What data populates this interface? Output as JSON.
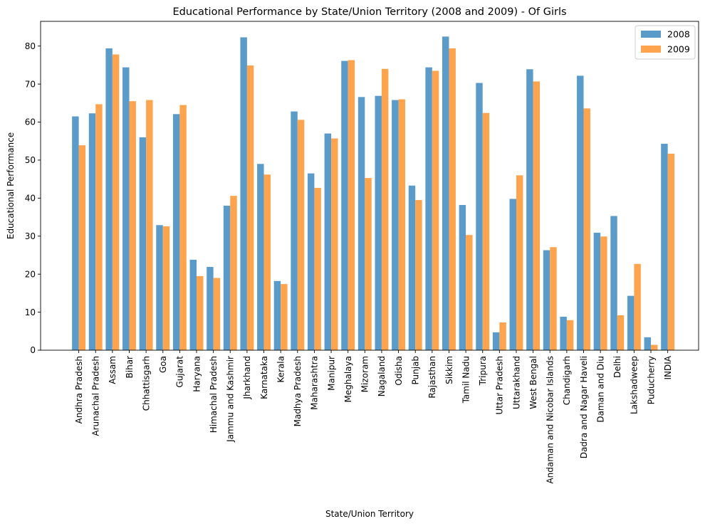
{
  "chart_data": {
    "type": "bar",
    "title": "Educational Performance by State/Union Territory (2008 and 2009) - Of Girls",
    "xlabel": "State/Union Territory",
    "ylabel": "Educational Performance",
    "ylim": [
      0,
      86.5
    ],
    "yticks": [
      0,
      10,
      20,
      30,
      40,
      50,
      60,
      70,
      80
    ],
    "grid": false,
    "legend_position": "top-right",
    "categories": [
      "Andhra Pradesh",
      "Arunachal Pradesh",
      "Assam",
      "Bihar",
      "Chhattisgarh",
      "Goa",
      "Gujarat",
      "Haryana",
      "Himachal Pradesh",
      "Jammu and Kashmir",
      "Jharkhand",
      "Karnataka",
      "Kerala",
      "Madhya Pradesh",
      "Maharashtra",
      "Manipur",
      "Meghalaya",
      "Mizoram",
      "Nagaland",
      "Odisha",
      "Punjab",
      "Rajasthan",
      "Sikkim",
      "Tamil Nadu",
      "Tripura",
      "Uttar Pradesh",
      "Uttarakhand",
      "West Bengal",
      "Andaman and Nicobar Islands",
      "Chandigarh",
      "Dadra and Nagar Haveli",
      "Daman and Diu",
      "Delhi",
      "Lakshadweep",
      "Puducherry",
      "INDIA"
    ],
    "series": [
      {
        "name": "2008",
        "color": "#5b9bc9",
        "values": [
          61.5,
          62.3,
          79.4,
          74.4,
          56.0,
          32.9,
          62.1,
          23.8,
          21.9,
          38.0,
          82.3,
          49.0,
          18.2,
          62.8,
          46.5,
          57.0,
          76.1,
          66.6,
          66.9,
          65.8,
          43.3,
          74.4,
          82.5,
          38.2,
          70.3,
          4.7,
          39.8,
          73.9,
          26.3,
          8.8,
          72.2,
          30.9,
          35.3,
          14.3,
          3.4,
          54.3
        ]
      },
      {
        "name": "2009",
        "color": "#fea44f",
        "values": [
          53.9,
          64.7,
          77.8,
          65.5,
          65.8,
          32.6,
          64.5,
          19.5,
          19.0,
          40.6,
          74.9,
          46.2,
          17.4,
          60.6,
          42.7,
          55.7,
          76.3,
          45.3,
          74.0,
          66.0,
          39.5,
          73.5,
          79.4,
          30.3,
          62.4,
          7.3,
          46.0,
          70.7,
          27.1,
          7.9,
          63.6,
          29.9,
          9.2,
          22.7,
          1.4,
          51.7
        ]
      }
    ]
  }
}
